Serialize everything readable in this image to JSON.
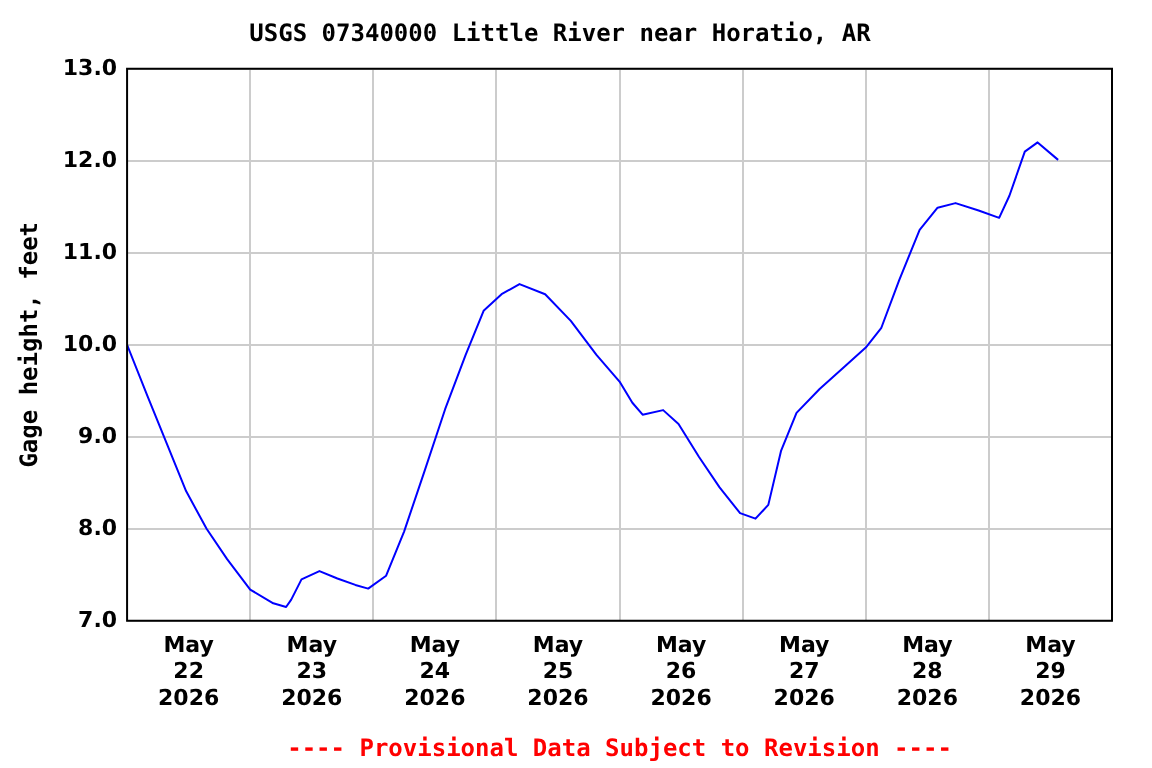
{
  "chart_data": {
    "type": "line",
    "title": "USGS 07340000 Little River near Horatio, AR",
    "ylabel": "Gage height, feet",
    "annotations": [
      "---- Provisional Data Subject to Revision ----"
    ],
    "x": [
      "2026-05-22T00:00",
      "2026-05-22T04:00",
      "2026-05-22T08:00",
      "2026-05-22T11:30",
      "2026-05-22T15:30",
      "2026-05-22T19:30",
      "2026-05-23T00:00",
      "2026-05-23T04:30",
      "2026-05-23T07:00",
      "2026-05-23T08:00",
      "2026-05-23T10:00",
      "2026-05-23T13:30",
      "2026-05-23T17:00",
      "2026-05-23T20:30",
      "2026-05-23T23:00",
      "2026-05-24T02:30",
      "2026-05-24T06:00",
      "2026-05-24T10:00",
      "2026-05-24T14:00",
      "2026-05-24T18:00",
      "2026-05-24T21:30",
      "2026-05-25T01:00",
      "2026-05-25T04:30",
      "2026-05-25T09:30",
      "2026-05-25T14:30",
      "2026-05-25T19:30",
      "2026-05-26T00:00",
      "2026-05-26T02:30",
      "2026-05-26T04:30",
      "2026-05-26T08:30",
      "2026-05-26T11:30",
      "2026-05-26T15:30",
      "2026-05-26T19:30",
      "2026-05-26T23:30",
      "2026-05-27T02:30",
      "2026-05-27T05:00",
      "2026-05-27T07:30",
      "2026-05-27T10:30",
      "2026-05-27T15:00",
      "2026-05-27T20:00",
      "2026-05-28T00:00",
      "2026-05-28T03:00",
      "2026-05-28T06:30",
      "2026-05-28T10:30",
      "2026-05-28T14:00",
      "2026-05-28T17:30",
      "2026-05-28T22:00",
      "2026-05-29T02:00",
      "2026-05-29T04:00",
      "2026-05-29T07:00",
      "2026-05-29T09:30",
      "2026-05-29T13:30"
    ],
    "series": [
      {
        "color": "#0000ff",
        "values": [
          10.0,
          9.44,
          8.89,
          8.41,
          8.0,
          7.67,
          7.34,
          7.19,
          7.15,
          7.23,
          7.45,
          7.54,
          7.46,
          7.39,
          7.35,
          7.49,
          7.97,
          8.63,
          9.3,
          9.89,
          10.37,
          10.55,
          10.66,
          10.55,
          10.26,
          9.89,
          9.6,
          9.37,
          9.24,
          9.29,
          9.14,
          8.78,
          8.45,
          8.17,
          8.11,
          8.26,
          8.85,
          9.26,
          9.52,
          9.77,
          9.97,
          10.18,
          10.7,
          11.25,
          11.49,
          11.54,
          11.46,
          11.38,
          11.62,
          12.1,
          12.2,
          12.01
        ]
      }
    ],
    "xlim": [
      "2026-05-22T00:00",
      "2026-05-30T00:00"
    ],
    "xticks": [
      {
        "value": "2026-05-22T12:00",
        "label": "May 22 2026"
      },
      {
        "value": "2026-05-23T00:00",
        "label": null
      },
      {
        "value": "2026-05-23T12:00",
        "label": "May 23 2026"
      },
      {
        "value": "2026-05-24T00:00",
        "label": null
      },
      {
        "value": "2026-05-24T12:00",
        "label": "May 24 2026"
      },
      {
        "value": "2026-05-25T00:00",
        "label": null
      },
      {
        "value": "2026-05-25T12:00",
        "label": "May 25 2026"
      },
      {
        "value": "2026-05-26T00:00",
        "label": null
      },
      {
        "value": "2026-05-26T12:00",
        "label": "May 26 2026"
      },
      {
        "value": "2026-05-27T00:00",
        "label": null
      },
      {
        "value": "2026-05-27T12:00",
        "label": "May 27 2026"
      },
      {
        "value": "2026-05-28T00:00",
        "label": null
      },
      {
        "value": "2026-05-28T12:00",
        "label": "May 28 2026"
      },
      {
        "value": "2026-05-29T00:00",
        "label": null
      },
      {
        "value": "2026-05-29T12:00",
        "label": "May 29 2026"
      }
    ],
    "ylim": [
      7.0,
      13.0
    ],
    "yticks": [
      {
        "value": 7,
        "label": "7.0"
      },
      {
        "value": 8,
        "label": "8.0"
      },
      {
        "value": 9,
        "label": "9.0"
      },
      {
        "value": 10,
        "label": "10.0"
      },
      {
        "value": 11,
        "label": "11.0"
      },
      {
        "value": 12,
        "label": "12.0"
      },
      {
        "value": 13,
        "label": "13.0"
      }
    ],
    "grid": true
  }
}
